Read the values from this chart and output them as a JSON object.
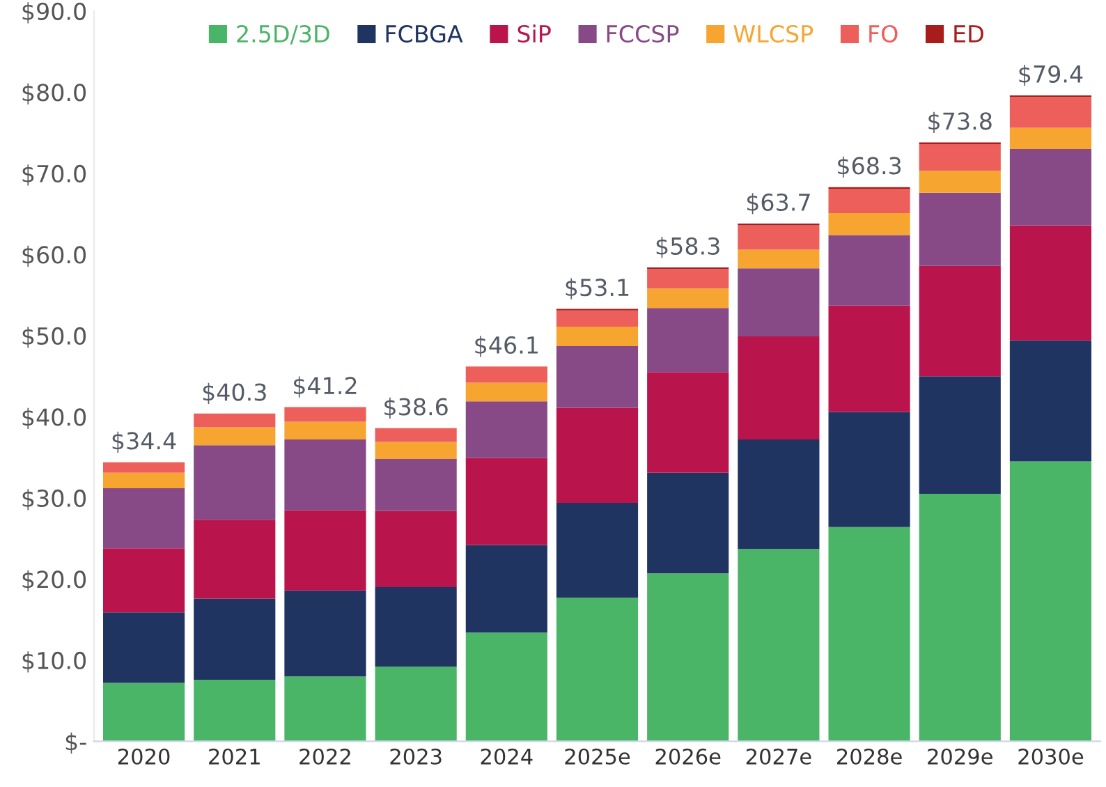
{
  "chart_data": {
    "type": "bar",
    "stacked": true,
    "categories": [
      "2020",
      "2021",
      "2022",
      "2023",
      "2024",
      "2025e",
      "2026e",
      "2027e",
      "2028e",
      "2029e",
      "2030e"
    ],
    "series": [
      {
        "name": "2.5D/3D",
        "color": "#4bb567",
        "values": [
          7.2,
          7.6,
          8.0,
          9.2,
          13.4,
          17.7,
          20.7,
          23.7,
          26.4,
          30.5,
          34.5
        ]
      },
      {
        "name": "FCBGA",
        "color": "#1f3461",
        "values": [
          8.7,
          10.0,
          10.6,
          9.8,
          10.8,
          11.7,
          12.4,
          13.5,
          14.2,
          14.5,
          14.9
        ]
      },
      {
        "name": "SiP",
        "color": "#b9154c",
        "values": [
          7.9,
          9.7,
          9.9,
          9.4,
          10.7,
          11.7,
          12.4,
          12.7,
          13.1,
          13.6,
          14.2
        ]
      },
      {
        "name": "FCCSP",
        "color": "#874a87",
        "values": [
          7.4,
          9.2,
          8.7,
          6.4,
          7.0,
          7.6,
          7.9,
          8.4,
          8.7,
          9.0,
          9.4
        ]
      },
      {
        "name": "WLCSP",
        "color": "#f6a531",
        "values": [
          1.9,
          2.2,
          2.2,
          2.1,
          2.3,
          2.4,
          2.4,
          2.3,
          2.7,
          2.7,
          2.6
        ]
      },
      {
        "name": "FO",
        "color": "#ec5f5a",
        "values": [
          1.3,
          1.7,
          1.8,
          1.7,
          2.0,
          2.0,
          2.4,
          3.0,
          3.0,
          3.3,
          3.8
        ]
      },
      {
        "name": "ED",
        "color": "#a81c1c",
        "values": [
          null,
          null,
          null,
          null,
          null,
          0.2,
          0.2,
          0.2,
          0.2,
          0.2,
          0.2
        ]
      }
    ],
    "totals": [
      "$34.4",
      "$40.3",
      "$41.2",
      "$38.6",
      "$46.1",
      "$53.1",
      "$58.3",
      "$63.7",
      "$68.3",
      "$73.8",
      "$79.4"
    ],
    "ylim": [
      0,
      90
    ],
    "yticks": [
      {
        "value": 0,
        "label": "$-"
      },
      {
        "value": 10,
        "label": "$10.0"
      },
      {
        "value": 20,
        "label": "$20.0"
      },
      {
        "value": 30,
        "label": "$30.0"
      },
      {
        "value": 40,
        "label": "$40.0"
      },
      {
        "value": 50,
        "label": "$50.0"
      },
      {
        "value": 60,
        "label": "$60.0"
      },
      {
        "value": 70,
        "label": "$70.0"
      },
      {
        "value": 80,
        "label": "$80.0"
      },
      {
        "value": 90,
        "label": "$90.0"
      }
    ],
    "grid": false,
    "legend": "top"
  }
}
